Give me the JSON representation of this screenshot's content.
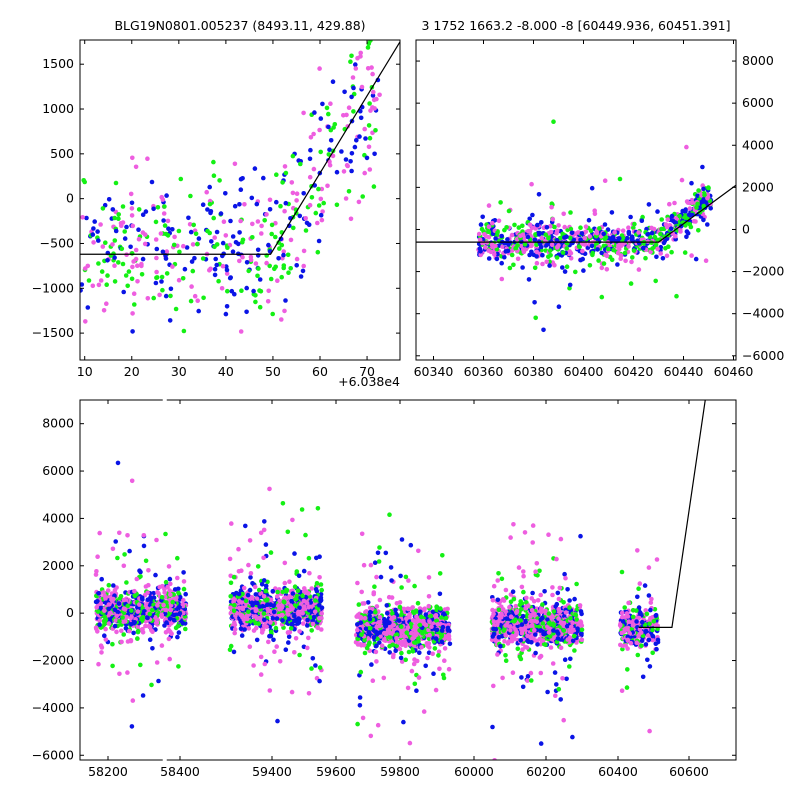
{
  "colors": {
    "blue": "#0a14e6",
    "green": "#14f014",
    "magenta": "#ee5ee0",
    "line": "#000000"
  },
  "chart_data": [
    {
      "type": "scatter",
      "title": "BLG19N0801.005237 (8493.11, 429.88)",
      "xlabel": "",
      "ylabel": "",
      "x_offset_label": "+6.038e4",
      "xlim": [
        9,
        77
      ],
      "ylim": [
        -1800,
        1770
      ],
      "xticks": [
        10,
        20,
        30,
        40,
        50,
        60,
        70
      ],
      "yticks": [
        -1500,
        -1000,
        -500,
        0,
        500,
        1000,
        1500
      ],
      "model_line": {
        "x": [
          9,
          49.5,
          77
        ],
        "y": [
          -620,
          -620,
          1750
        ]
      }
    },
    {
      "type": "scatter",
      "title": "3 1752 1663.2 -8.000 -8 [60449.936, 60451.391]",
      "xlabel": "",
      "ylabel": "",
      "xlim": [
        60333,
        60461
      ],
      "ylim": [
        -6200,
        9000
      ],
      "xticks": [
        60340,
        60360,
        60380,
        60400,
        60420,
        60440,
        60460
      ],
      "yticks": [
        -6000,
        -4000,
        -2000,
        0,
        2000,
        4000,
        6000,
        8000
      ],
      "y_axis_side": "right",
      "model_line": {
        "x": [
          60333,
          60430,
          60461
        ],
        "y": [
          -600,
          -600,
          2100
        ]
      }
    },
    {
      "type": "scatter",
      "title": "",
      "xlabel": "",
      "ylabel": "",
      "xlim": [
        58120,
        60680
      ],
      "ylim": [
        -6200,
        9000
      ],
      "xticks": [
        58200,
        58400,
        59400,
        59600,
        59800,
        60000,
        60200,
        60400,
        60600
      ],
      "yticks": [
        -6000,
        -4000,
        -2000,
        0,
        2000,
        4000,
        6000,
        8000
      ],
      "axis_break_after": 58400,
      "model_line": {
        "x": [
          60300,
          60430,
          60560
        ],
        "y": [
          -600,
          -600,
          9000
        ]
      }
    }
  ],
  "series": [
    "blue",
    "green",
    "magenta"
  ]
}
